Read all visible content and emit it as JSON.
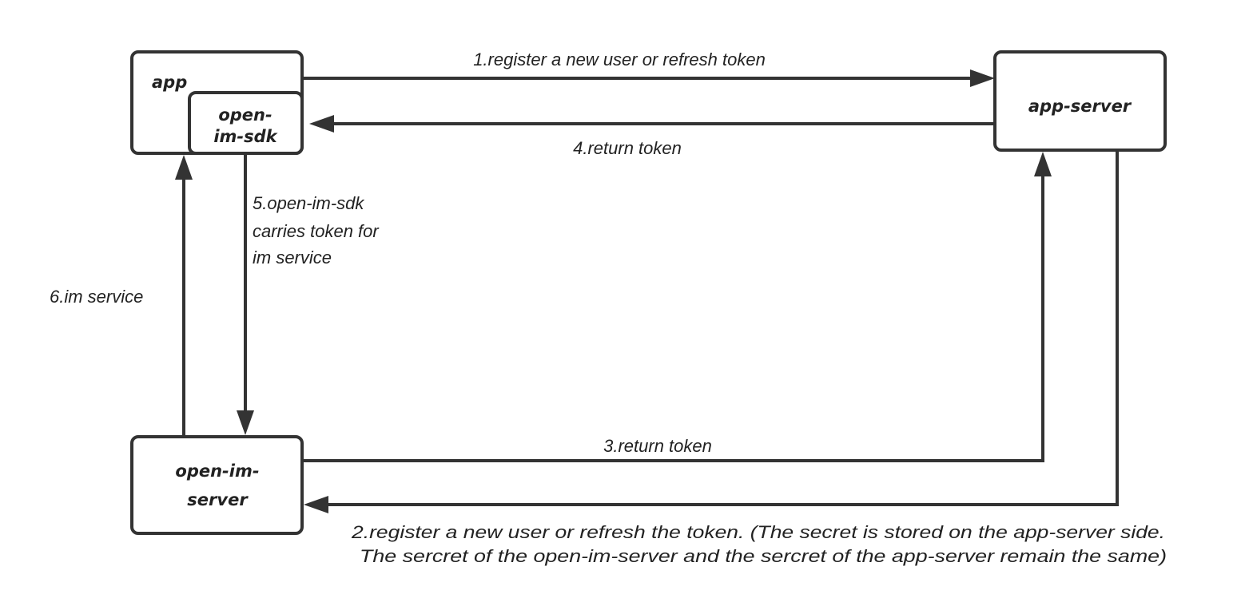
{
  "nodes": {
    "app": "app",
    "sdk_line1": "open-",
    "sdk_line2": "im-sdk",
    "app_server": "app-server",
    "im_server_line1": "open-im-",
    "im_server_line2": "server"
  },
  "edges": {
    "step1": "1.register a new user or refresh token",
    "step2_line1": "2.register a new user or refresh the token. (The secret is stored on the app-server side.",
    "step2_line2": "The sercret of the open-im-server and the sercret of the app-server remain the same)",
    "step3": "3.return token",
    "step4": "4.return token",
    "step5_line1": "5.open-im-sdk",
    "step5_line2": "carries token for",
    "step5_line3": "im service",
    "step6": "6.im service"
  },
  "colors": {
    "stroke": "#333333",
    "text": "#222222"
  }
}
